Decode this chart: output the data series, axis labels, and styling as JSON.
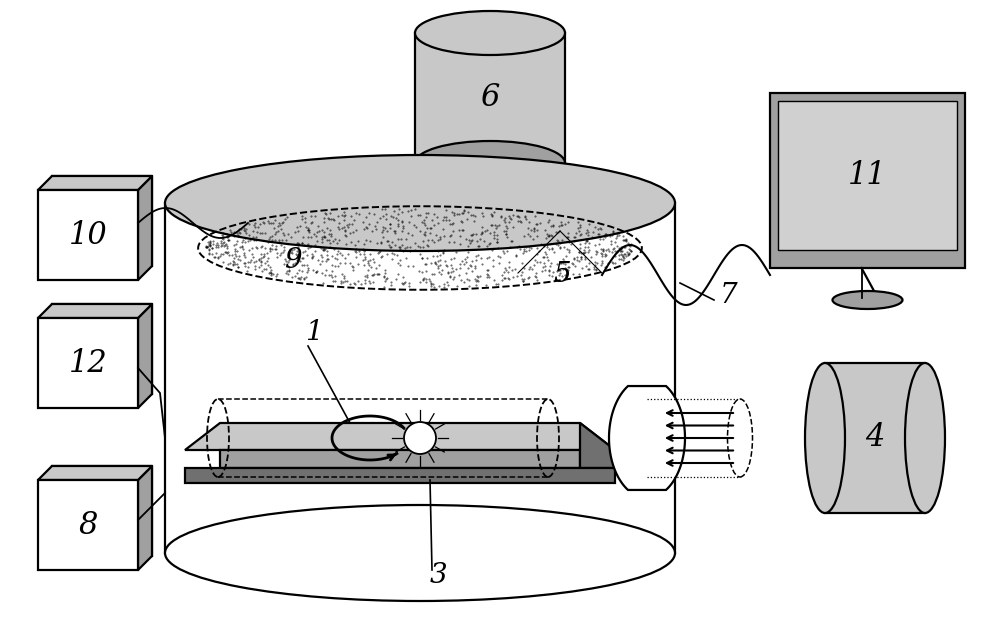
{
  "bg_color": "#ffffff",
  "lgray": "#c8c8c8",
  "mgray": "#a0a0a0",
  "dgray": "#707070",
  "vlgray": "#e0e0e0",
  "screen_gray": "#d0d0d0",
  "lw": 1.6
}
